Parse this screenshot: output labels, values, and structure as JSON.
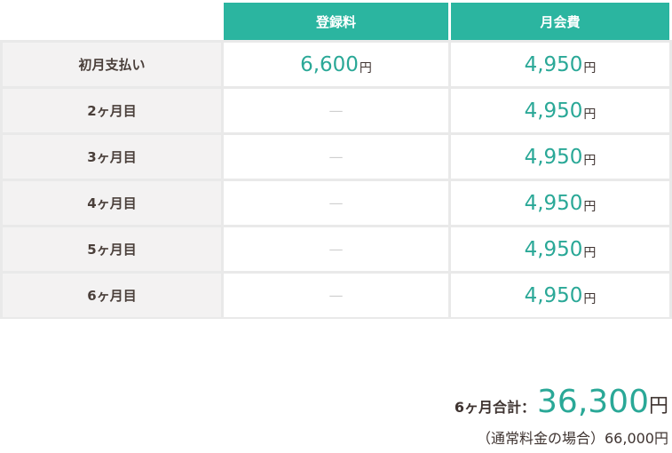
{
  "table": {
    "columns": [
      "登録料",
      "月会費"
    ],
    "rows": [
      {
        "label": "初月支払い",
        "cells": [
          {
            "amount": "6,600",
            "unit": "円"
          },
          {
            "amount": "4,950",
            "unit": "円"
          }
        ]
      },
      {
        "label": "2ヶ月目",
        "cells": [
          {
            "dash": "—"
          },
          {
            "amount": "4,950",
            "unit": "円"
          }
        ]
      },
      {
        "label": "3ヶ月目",
        "cells": [
          {
            "dash": "—"
          },
          {
            "amount": "4,950",
            "unit": "円"
          }
        ]
      },
      {
        "label": "4ヶ月目",
        "cells": [
          {
            "dash": "—"
          },
          {
            "amount": "4,950",
            "unit": "円"
          }
        ]
      },
      {
        "label": "5ヶ月目",
        "cells": [
          {
            "dash": "—"
          },
          {
            "amount": "4,950",
            "unit": "円"
          }
        ]
      },
      {
        "label": "6ヶ月目",
        "cells": [
          {
            "dash": "—"
          },
          {
            "amount": "4,950",
            "unit": "円"
          }
        ]
      }
    ]
  },
  "summary": {
    "label": "6ヶ月合計：",
    "amount": "36,300",
    "unit": "円",
    "note": "（通常料金の場合）66,000円"
  }
}
